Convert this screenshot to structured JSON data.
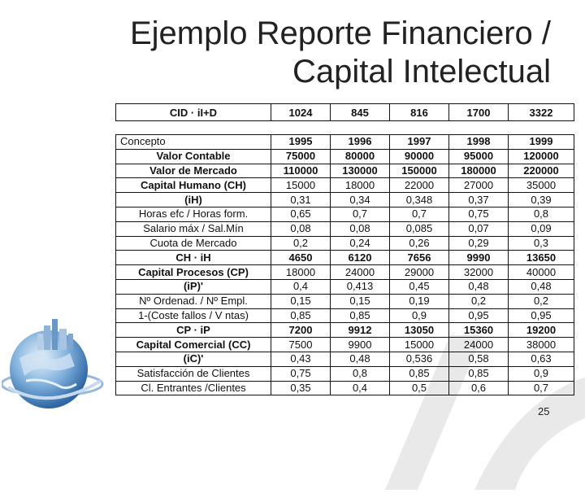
{
  "slide": {
    "title_line1": "Ejemplo Reporte Financiero /",
    "title_line2": "Capital Intelectual",
    "page_number": "25"
  },
  "top_row": {
    "label": "CID · iI+D",
    "values": [
      "1024",
      "845",
      "816",
      "1700",
      "3322"
    ]
  },
  "table": {
    "header": [
      "Concepto",
      "1995",
      "1996",
      "1997",
      "1998",
      "1999"
    ],
    "rows": [
      {
        "label": "Valor Contable",
        "values": [
          "75000",
          "80000",
          "90000",
          "95000",
          "120000"
        ],
        "bold": true
      },
      {
        "label": "Valor de Mercado",
        "values": [
          "110000",
          "130000",
          "150000",
          "180000",
          "220000"
        ],
        "bold": true
      },
      {
        "label": "Capital Humano (CH)",
        "values": [
          "15000",
          "18000",
          "22000",
          "27000",
          "35000"
        ],
        "bold": false,
        "bold_label": true
      },
      {
        "label": "(iH)",
        "values": [
          "0,31",
          "0,34",
          "0,348",
          "0,37",
          "0,39"
        ],
        "bold": false,
        "bold_label": true
      },
      {
        "label": "Horas efc / Horas form.",
        "values": [
          "0,65",
          "0,7",
          "0,7",
          "0,75",
          "0,8"
        ],
        "bold": false
      },
      {
        "label": "Salario máx / Sal.Mín",
        "values": [
          "0,08",
          "0,08",
          "0,085",
          "0,07",
          "0,09"
        ],
        "bold": false
      },
      {
        "label": "Cuota de Mercado",
        "values": [
          "0,2",
          "0,24",
          "0,26",
          "0,29",
          "0,3"
        ],
        "bold": false
      },
      {
        "label": "CH · iH",
        "values": [
          "4650",
          "6120",
          "7656",
          "9990",
          "13650"
        ],
        "bold": true
      },
      {
        "label": "Capital Procesos (CP)",
        "values": [
          "18000",
          "24000",
          "29000",
          "32000",
          "40000"
        ],
        "bold": false,
        "bold_label": true
      },
      {
        "label": "(iP)'",
        "values": [
          "0,4",
          "0,413",
          "0,45",
          "0,48",
          "0,48"
        ],
        "bold": false,
        "bold_label": true
      },
      {
        "label": "Nº Ordenad. / Nº Empl.",
        "values": [
          "0,15",
          "0,15",
          "0,19",
          "0,2",
          "0,2"
        ],
        "bold": false
      },
      {
        "label": "1-(Coste fallos / V ntas)",
        "values": [
          "0,85",
          "0,85",
          "0,9",
          "0,95",
          "0,95"
        ],
        "bold": false
      },
      {
        "label": "CP · iP",
        "values": [
          "7200",
          "9912",
          "13050",
          "15360",
          "19200"
        ],
        "bold": true
      },
      {
        "label": "Capital Comercial (CC)",
        "values": [
          "7500",
          "9900",
          "15000",
          "24000",
          "38000"
        ],
        "bold": false,
        "bold_label": true
      },
      {
        "label": "(iC)'",
        "values": [
          "0,43",
          "0,48",
          "0,536",
          "0,58",
          "0,63"
        ],
        "bold": false,
        "bold_label": true
      },
      {
        "label": "Satisfacción de Clientes",
        "values": [
          "0,75",
          "0,8",
          "0,85",
          "0,85",
          "0,9"
        ],
        "bold": false
      },
      {
        "label": "Cl. Entrantes /Clientes",
        "values": [
          "0,35",
          "0,4",
          "0,5",
          "0,6",
          "0,7"
        ],
        "bold": false
      }
    ]
  },
  "icons": {
    "globe": "globe-with-buildings-icon",
    "watermark": "watermark-logo"
  }
}
